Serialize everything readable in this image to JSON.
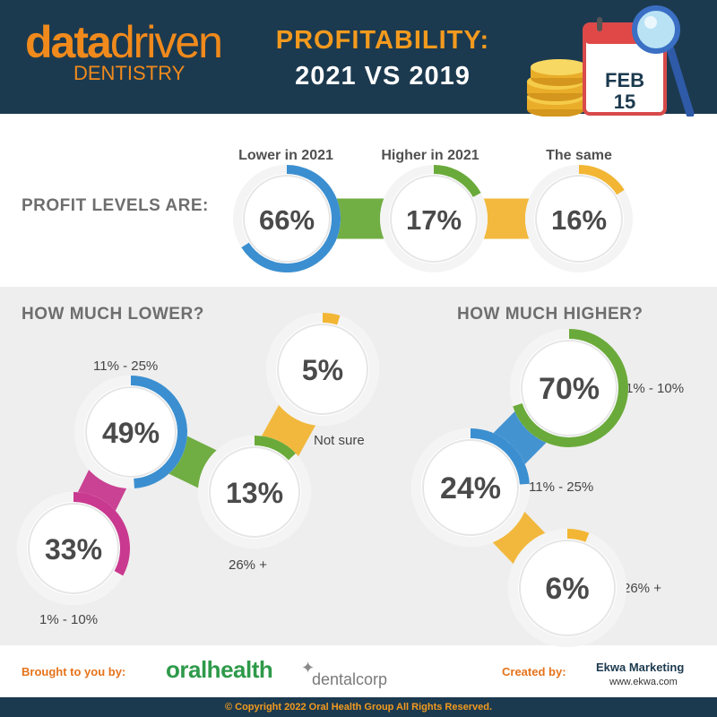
{
  "brand": {
    "logo_main": "data",
    "logo_main2": "driven",
    "logo_sub": "DENTISTRY",
    "calendar_month": "FEB",
    "calendar_day": "15"
  },
  "title": {
    "line1": "PROFITABILITY:",
    "line2": "2021 VS 2019"
  },
  "sections": {
    "profit_levels": "PROFIT LEVELS ARE:",
    "lower": "HOW MUCH LOWER?",
    "higher": "HOW MUCH HIGHER?"
  },
  "colors": {
    "blue": "#3b8fd0",
    "green": "#6aaa3a",
    "yellow": "#f2b634",
    "magenta": "#c9398f",
    "header_bg": "#1c3a4f",
    "accent_orange": "#f39a1e"
  },
  "chart_data": [
    {
      "type": "pie",
      "section": "PROFIT LEVELS ARE:",
      "categories": [
        "Lower in 2021",
        "Higher in 2021",
        "The same"
      ],
      "values": [
        66,
        17,
        16
      ],
      "value_labels": [
        "66%",
        "17%",
        "16%"
      ],
      "colors": [
        "blue",
        "green",
        "yellow"
      ]
    },
    {
      "type": "pie",
      "section": "HOW MUCH LOWER?",
      "categories": [
        "11% - 25%",
        "Not sure",
        "26% +",
        "1% - 10%"
      ],
      "values": [
        49,
        5,
        13,
        33
      ],
      "value_labels": [
        "49%",
        "5%",
        "13%",
        "33%"
      ],
      "colors": [
        "blue",
        "yellow",
        "green",
        "magenta"
      ]
    },
    {
      "type": "pie",
      "section": "HOW MUCH HIGHER?",
      "categories": [
        "1% - 10%",
        "11% - 25%",
        "26% +"
      ],
      "values": [
        70,
        24,
        6
      ],
      "value_labels": [
        "70%",
        "24%",
        "6%"
      ],
      "colors": [
        "green",
        "blue",
        "yellow"
      ]
    }
  ],
  "footer": {
    "brought_by": "Brought to you by:",
    "partner1": "oralhealth",
    "partner2": "dentalcorp",
    "created_by": "Created by:",
    "creator": "Ekwa Marketing",
    "creator_url": "www.ekwa.com",
    "copyright": "© Copyright 2022 Oral Health Group All Rights Reserved."
  }
}
